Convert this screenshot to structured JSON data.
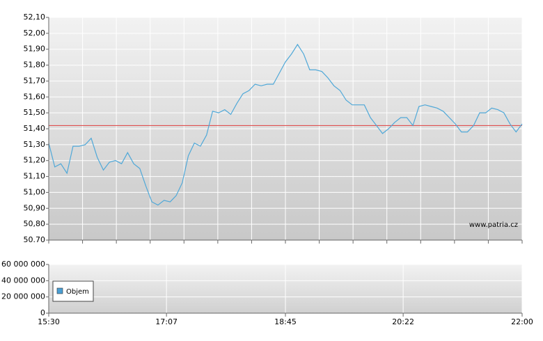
{
  "chart_data": [
    {
      "type": "line",
      "x": [
        930,
        935,
        940,
        945,
        950,
        955,
        960,
        965,
        970,
        975,
        980,
        985,
        990,
        995,
        1000,
        1005,
        1010,
        1015,
        1020,
        1025,
        1030,
        1035,
        1040,
        1045,
        1050,
        1055,
        1060,
        1065,
        1070,
        1075,
        1080,
        1085,
        1090,
        1095,
        1100,
        1105,
        1110,
        1115,
        1120,
        1125,
        1130,
        1135,
        1140,
        1145,
        1150,
        1155,
        1160,
        1165,
        1170,
        1175,
        1180,
        1185,
        1190,
        1195,
        1200,
        1205,
        1210,
        1215,
        1220,
        1225,
        1230,
        1235,
        1240,
        1245,
        1250,
        1255,
        1260,
        1265,
        1270,
        1275,
        1280,
        1285,
        1290,
        1295,
        1300,
        1305,
        1310,
        1315,
        1320
      ],
      "values": [
        51.31,
        51.16,
        51.18,
        51.12,
        51.29,
        51.29,
        51.3,
        51.34,
        51.22,
        51.14,
        51.19,
        51.2,
        51.18,
        51.25,
        51.18,
        51.15,
        51.04,
        50.94,
        50.92,
        50.95,
        50.94,
        50.98,
        51.06,
        51.23,
        51.31,
        51.29,
        51.36,
        51.51,
        51.5,
        51.52,
        51.49,
        51.56,
        51.62,
        51.64,
        51.68,
        51.67,
        51.68,
        51.68,
        51.75,
        51.82,
        51.87,
        51.93,
        51.87,
        51.77,
        51.77,
        51.76,
        51.72,
        51.67,
        51.64,
        51.58,
        51.55,
        51.55,
        51.55,
        51.47,
        51.42,
        51.37,
        51.4,
        51.44,
        51.47,
        51.47,
        51.42,
        51.54,
        51.55,
        51.54,
        51.53,
        51.51,
        51.47,
        51.43,
        51.38,
        51.38,
        51.42,
        51.5,
        51.5,
        51.53,
        51.52,
        51.5,
        51.43,
        51.38,
        51.43
      ],
      "color": "#4fa8d8",
      "reference_line": 51.42,
      "reference_color": "#e05050",
      "xlim": [
        930,
        1320
      ],
      "xticks": [
        930,
        957.86,
        985.71,
        1013.57,
        1041.43,
        1069.29,
        1097.14,
        1125,
        1152.86,
        1180.71,
        1208.57,
        1236.43,
        1264.29,
        1292.14,
        1320
      ],
      "ylim": [
        50.7,
        52.1
      ],
      "yticks": [
        {
          "value": 50.7,
          "label": "50.70"
        },
        {
          "value": 50.8,
          "label": "50,80"
        },
        {
          "value": 50.9,
          "label": "50,90"
        },
        {
          "value": 51.0,
          "label": "51,00"
        },
        {
          "value": 51.1,
          "label": "51,10"
        },
        {
          "value": 51.2,
          "label": "51,20"
        },
        {
          "value": 51.3,
          "label": "51,30"
        },
        {
          "value": 51.4,
          "label": "51,40"
        },
        {
          "value": 51.5,
          "label": "51,50"
        },
        {
          "value": 51.6,
          "label": "51,60"
        },
        {
          "value": 51.7,
          "label": "51,70"
        },
        {
          "value": 51.8,
          "label": "51,80"
        },
        {
          "value": 51.9,
          "label": "51,90"
        },
        {
          "value": 52.0,
          "label": "52,00"
        },
        {
          "value": 52.1,
          "label": "52,10"
        }
      ],
      "grid": true,
      "watermark": "www.patria.cz"
    },
    {
      "type": "bar",
      "legend": {
        "label": "Objem",
        "color": "#4a9fd4"
      },
      "xlim": [
        930,
        1320
      ],
      "xticks": [
        {
          "value": 930,
          "label": "15:30"
        },
        {
          "value": 1027,
          "label": "17:07"
        },
        {
          "value": 1125,
          "label": "18:45"
        },
        {
          "value": 1222,
          "label": "20:22"
        },
        {
          "value": 1320,
          "label": "22:00"
        }
      ],
      "ylim": [
        0,
        60000000
      ],
      "yticks": [
        {
          "value": 0,
          "label": "0"
        },
        {
          "value": 20000000,
          "label": "20 000 000"
        },
        {
          "value": 40000000,
          "label": "40 000 000"
        },
        {
          "value": 60000000,
          "label": "60 000 000"
        }
      ],
      "grid": true
    }
  ]
}
